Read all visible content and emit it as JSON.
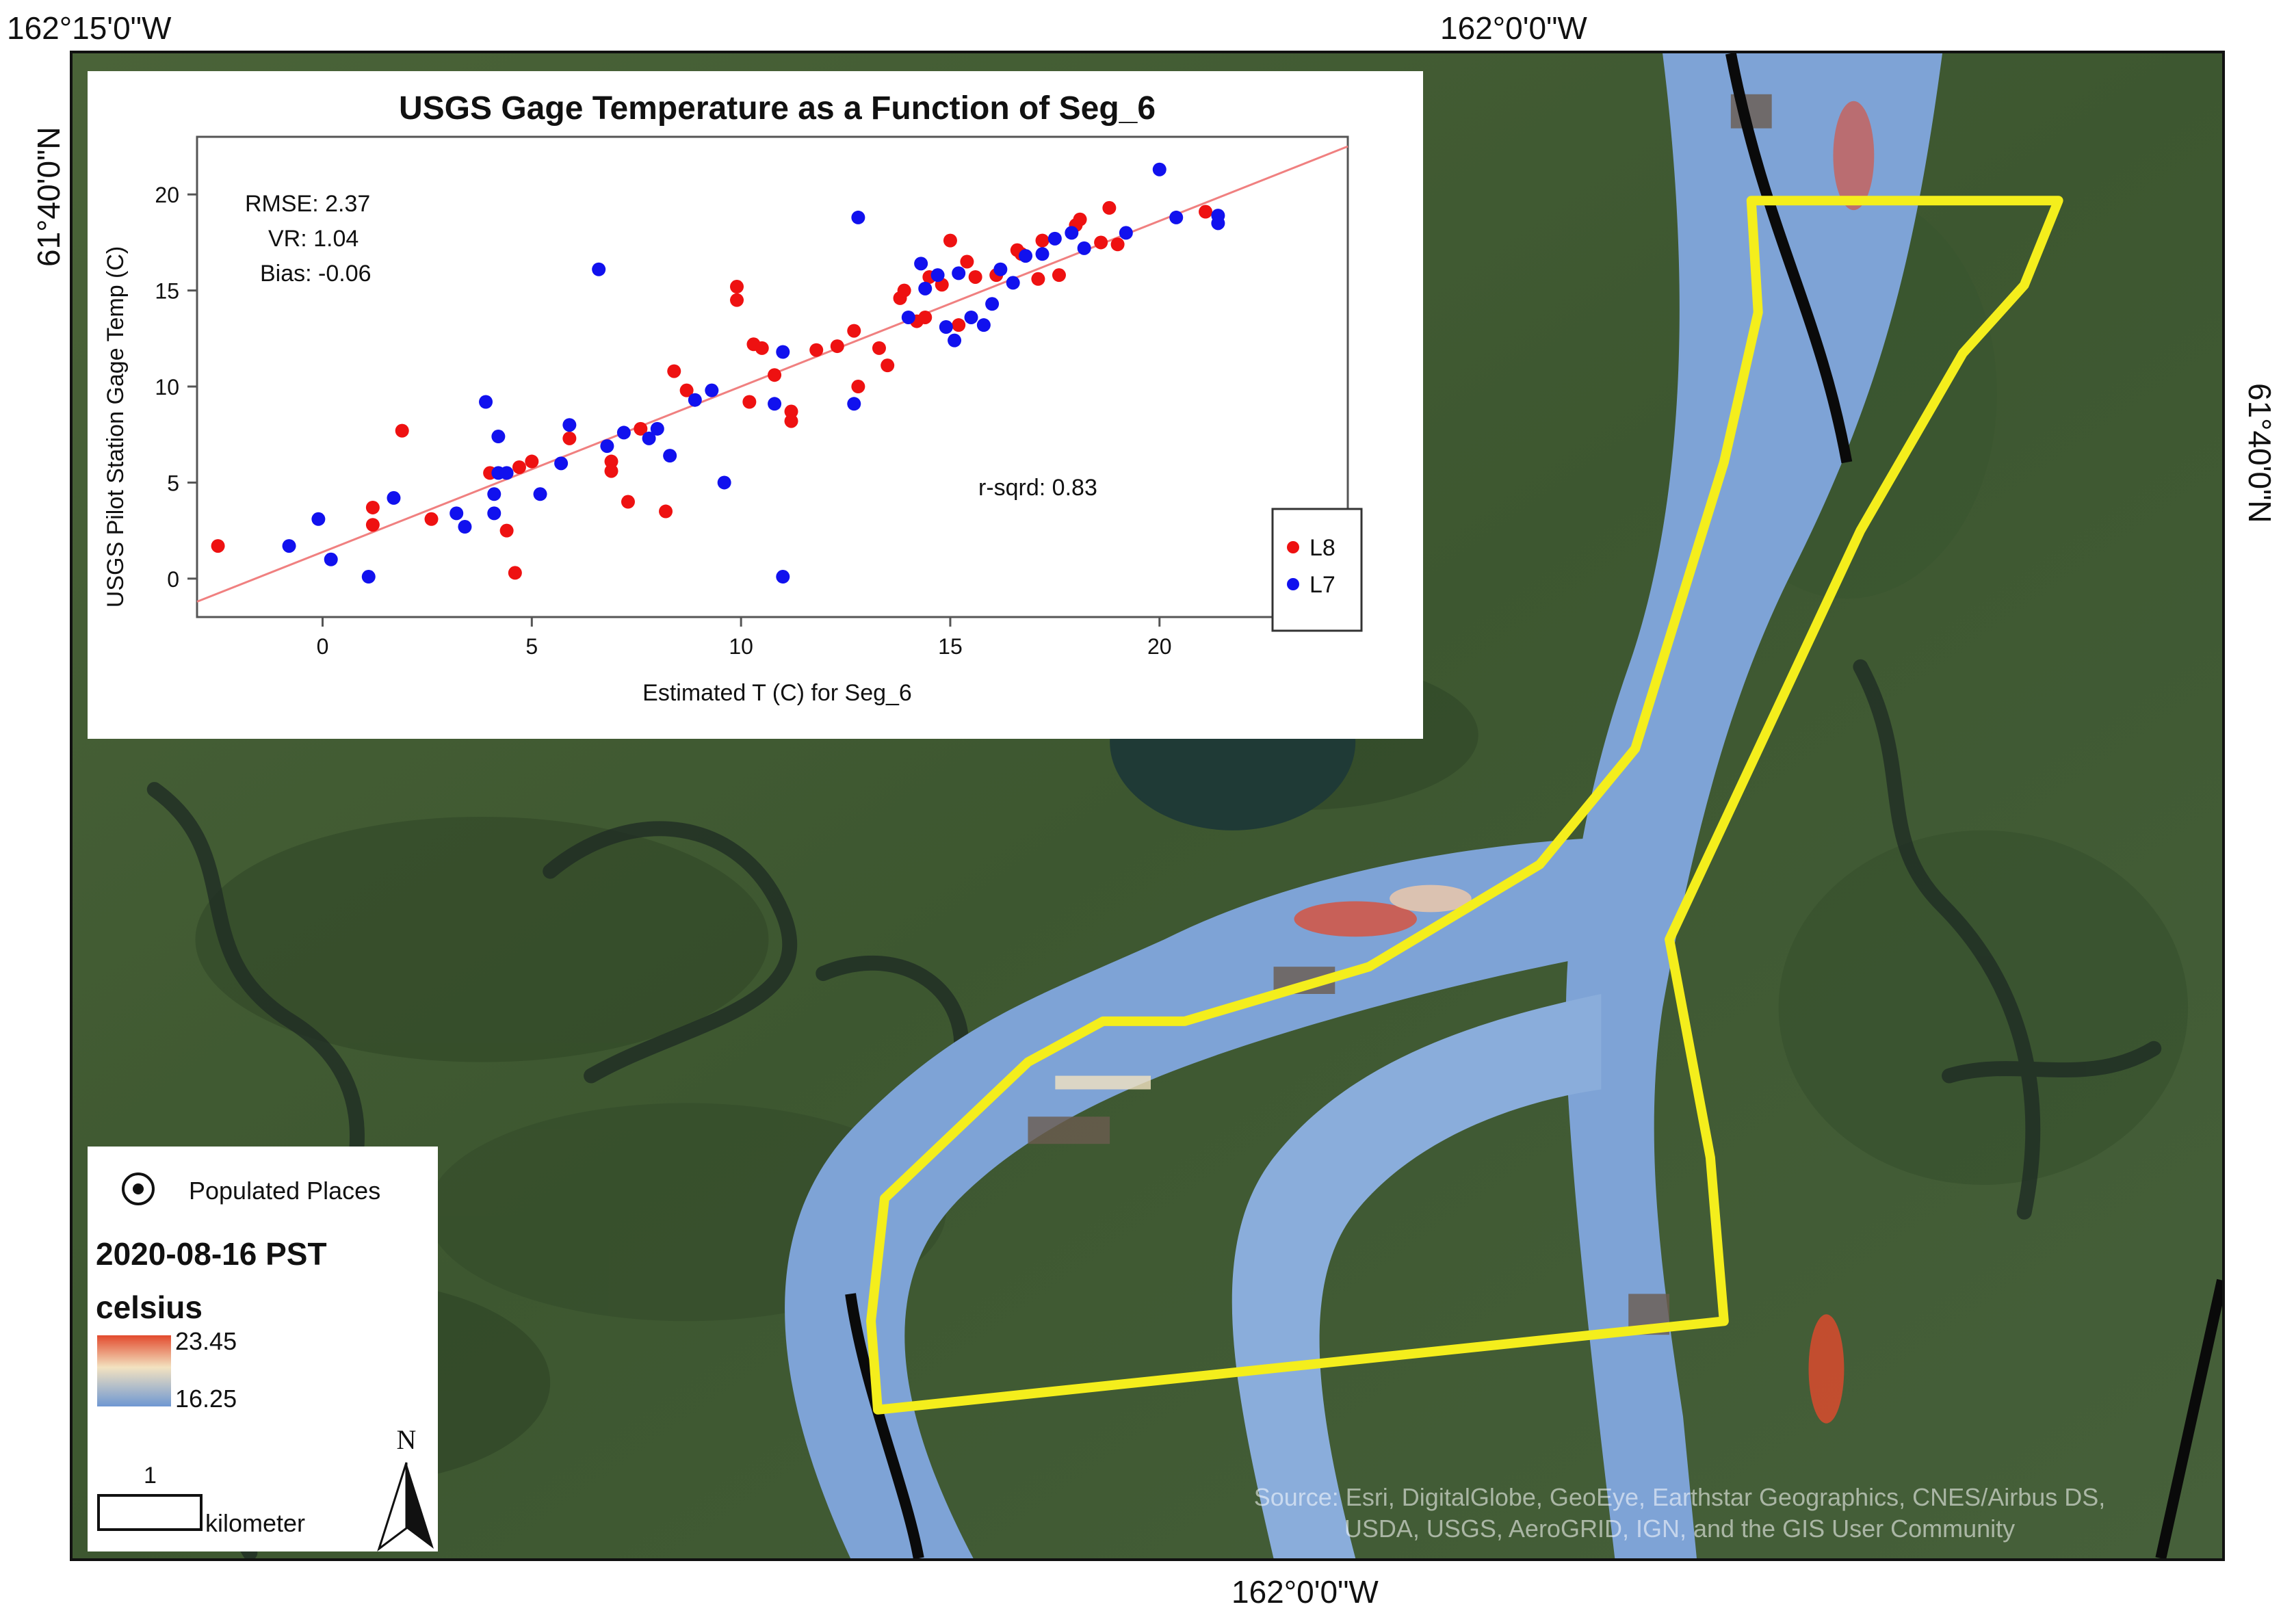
{
  "coordinates": {
    "top_left": "162°15'0\"W",
    "top_mid": "162°0'0\"W",
    "bottom_mid": "162°0'0\"W",
    "left_lat": "61°40'0\"N",
    "right_lat": "61°40'0\"N"
  },
  "chart_data": {
    "type": "scatter",
    "title": "USGS Gage Temperature as a Function of Seg_6",
    "xlabel": "Estimated T (C) for Seg_6",
    "ylabel": "USGS Pilot Station Gage Temp (C)",
    "xlim": [
      -3,
      24.5
    ],
    "ylim": [
      -2,
      23
    ],
    "xticks": [
      0,
      5,
      10,
      15,
      20
    ],
    "yticks": [
      0,
      5,
      10,
      15,
      20
    ],
    "stats": {
      "rmse": "RMSE: 2.37",
      "vr": "VR: 1.04",
      "bias": "Bias: -0.06",
      "rsqrd": "r-sqrd: 0.83"
    },
    "fit_line": {
      "x": [
        -3,
        24.5
      ],
      "y": [
        -1.2,
        22.5
      ],
      "color": "#f08080"
    },
    "legend_position": "bottom-right",
    "series": [
      {
        "name": "L8",
        "color": "#ee1111",
        "points": [
          [
            -2.5,
            1.7
          ],
          [
            1.2,
            2.8
          ],
          [
            1.2,
            3.7
          ],
          [
            1.9,
            7.7
          ],
          [
            2.6,
            3.1
          ],
          [
            4.0,
            5.5
          ],
          [
            4.4,
            2.5
          ],
          [
            4.6,
            0.3
          ],
          [
            4.7,
            5.8
          ],
          [
            5.0,
            6.1
          ],
          [
            5.9,
            7.3
          ],
          [
            6.9,
            6.1
          ],
          [
            6.9,
            5.6
          ],
          [
            7.3,
            4.0
          ],
          [
            7.6,
            7.8
          ],
          [
            8.2,
            3.5
          ],
          [
            8.4,
            10.8
          ],
          [
            8.7,
            9.8
          ],
          [
            9.9,
            15.2
          ],
          [
            9.9,
            14.5
          ],
          [
            10.2,
            9.2
          ],
          [
            10.3,
            12.2
          ],
          [
            10.5,
            12.0
          ],
          [
            10.8,
            10.6
          ],
          [
            11.2,
            8.7
          ],
          [
            11.2,
            8.2
          ],
          [
            11.8,
            11.9
          ],
          [
            12.3,
            12.1
          ],
          [
            12.7,
            12.9
          ],
          [
            12.8,
            10.0
          ],
          [
            13.3,
            12.0
          ],
          [
            13.5,
            11.1
          ],
          [
            13.8,
            14.6
          ],
          [
            13.9,
            15.0
          ],
          [
            14.2,
            13.4
          ],
          [
            14.4,
            13.6
          ],
          [
            14.5,
            15.7
          ],
          [
            14.8,
            15.3
          ],
          [
            15.0,
            17.6
          ],
          [
            15.2,
            13.2
          ],
          [
            15.4,
            16.5
          ],
          [
            15.6,
            15.7
          ],
          [
            16.1,
            15.8
          ],
          [
            16.6,
            17.1
          ],
          [
            16.7,
            16.9
          ],
          [
            17.1,
            15.6
          ],
          [
            17.2,
            17.6
          ],
          [
            17.6,
            15.8
          ],
          [
            18.0,
            18.4
          ],
          [
            18.1,
            18.7
          ],
          [
            18.6,
            17.5
          ],
          [
            18.8,
            19.3
          ],
          [
            19.0,
            17.4
          ],
          [
            21.1,
            19.1
          ]
        ]
      },
      {
        "name": "L7",
        "color": "#1111ee",
        "points": [
          [
            -0.8,
            1.7
          ],
          [
            -0.1,
            3.1
          ],
          [
            0.2,
            1.0
          ],
          [
            1.1,
            0.1
          ],
          [
            1.7,
            4.2
          ],
          [
            3.2,
            3.4
          ],
          [
            3.4,
            2.7
          ],
          [
            3.9,
            9.2
          ],
          [
            4.1,
            3.4
          ],
          [
            4.1,
            4.4
          ],
          [
            4.2,
            5.5
          ],
          [
            4.2,
            7.4
          ],
          [
            4.4,
            5.5
          ],
          [
            5.2,
            4.4
          ],
          [
            5.7,
            6.0
          ],
          [
            5.9,
            8.0
          ],
          [
            6.6,
            16.1
          ],
          [
            6.8,
            6.9
          ],
          [
            7.2,
            7.6
          ],
          [
            7.8,
            7.3
          ],
          [
            8.0,
            7.8
          ],
          [
            8.3,
            6.4
          ],
          [
            8.9,
            9.3
          ],
          [
            9.3,
            9.8
          ],
          [
            9.6,
            5.0
          ],
          [
            10.8,
            9.1
          ],
          [
            11.0,
            0.1
          ],
          [
            11.0,
            11.8
          ],
          [
            12.7,
            9.1
          ],
          [
            12.8,
            18.8
          ],
          [
            14.0,
            13.6
          ],
          [
            14.3,
            16.4
          ],
          [
            14.4,
            15.1
          ],
          [
            14.7,
            15.8
          ],
          [
            14.9,
            13.1
          ],
          [
            15.1,
            12.4
          ],
          [
            15.2,
            15.9
          ],
          [
            15.5,
            13.6
          ],
          [
            15.8,
            13.2
          ],
          [
            16.0,
            14.3
          ],
          [
            16.2,
            16.1
          ],
          [
            16.5,
            15.4
          ],
          [
            16.8,
            16.8
          ],
          [
            17.2,
            16.9
          ],
          [
            17.5,
            17.7
          ],
          [
            17.9,
            18.0
          ],
          [
            18.2,
            17.2
          ],
          [
            19.2,
            18.0
          ],
          [
            20.0,
            21.3
          ],
          [
            20.4,
            18.8
          ],
          [
            21.4,
            18.9
          ],
          [
            21.4,
            18.5
          ]
        ]
      }
    ]
  },
  "legend": {
    "populated_places": "Populated Places",
    "date": "2020-08-16 PST",
    "unit": "celsius",
    "max_value": "23.45",
    "min_value": "16.25",
    "scale_number": "1",
    "scale_unit": "kilometer",
    "north_label": "N"
  },
  "attribution": {
    "line1": "Source: Esri, DigitalGlobe, GeoEye, Earthstar Geographics, CNES/Airbus DS,",
    "line2": "USDA, USGS, AeroGRID, IGN, and the GIS User Community"
  },
  "colors": {
    "study_area": "#f4ee1c",
    "water": "#7ea3d6",
    "land": "#3f5a34",
    "boundary": "#0a0a0a"
  }
}
